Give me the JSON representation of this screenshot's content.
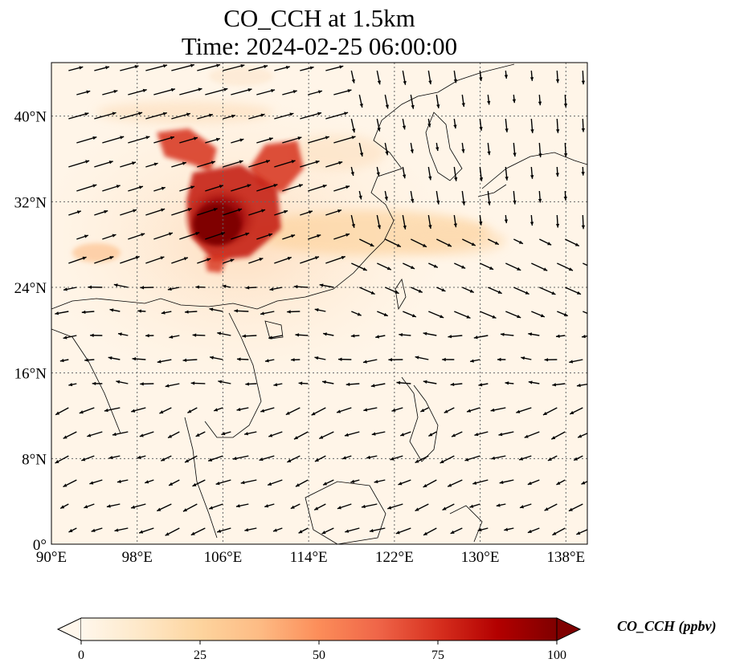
{
  "title": {
    "line1": "CO_CCH at 1.5km",
    "line2": "Time: 2024-02-25 06:00:00"
  },
  "map": {
    "lon_range": [
      90,
      140
    ],
    "lat_range": [
      0,
      45
    ],
    "lon_ticks": [
      {
        "value": 90,
        "label": "90°E"
      },
      {
        "value": 98,
        "label": "98°E"
      },
      {
        "value": 106,
        "label": "106°E"
      },
      {
        "value": 114,
        "label": "114°E"
      },
      {
        "value": 122,
        "label": "122°E"
      },
      {
        "value": 130,
        "label": "130°E"
      },
      {
        "value": 138,
        "label": "138°E"
      }
    ],
    "lat_ticks": [
      {
        "value": 0,
        "label": "0°"
      },
      {
        "value": 8,
        "label": "8°N"
      },
      {
        "value": 16,
        "label": "16°N"
      },
      {
        "value": 24,
        "label": "24°N"
      },
      {
        "value": 32,
        "label": "32°N"
      },
      {
        "value": 40,
        "label": "40°N"
      }
    ],
    "gridlines": true,
    "wind_vectors": true
  },
  "colorbar": {
    "label": "CO_CCH (ppbv)",
    "min": 0,
    "max": 100,
    "ticks": [
      0,
      25,
      50,
      75,
      100
    ],
    "extend": "both",
    "colormap": "OrRd",
    "colors": [
      "#fff7ec",
      "#fee8c8",
      "#fdd49e",
      "#fdbb84",
      "#fc8d59",
      "#ef6548",
      "#d7301f",
      "#b30000",
      "#7f0000"
    ]
  }
}
